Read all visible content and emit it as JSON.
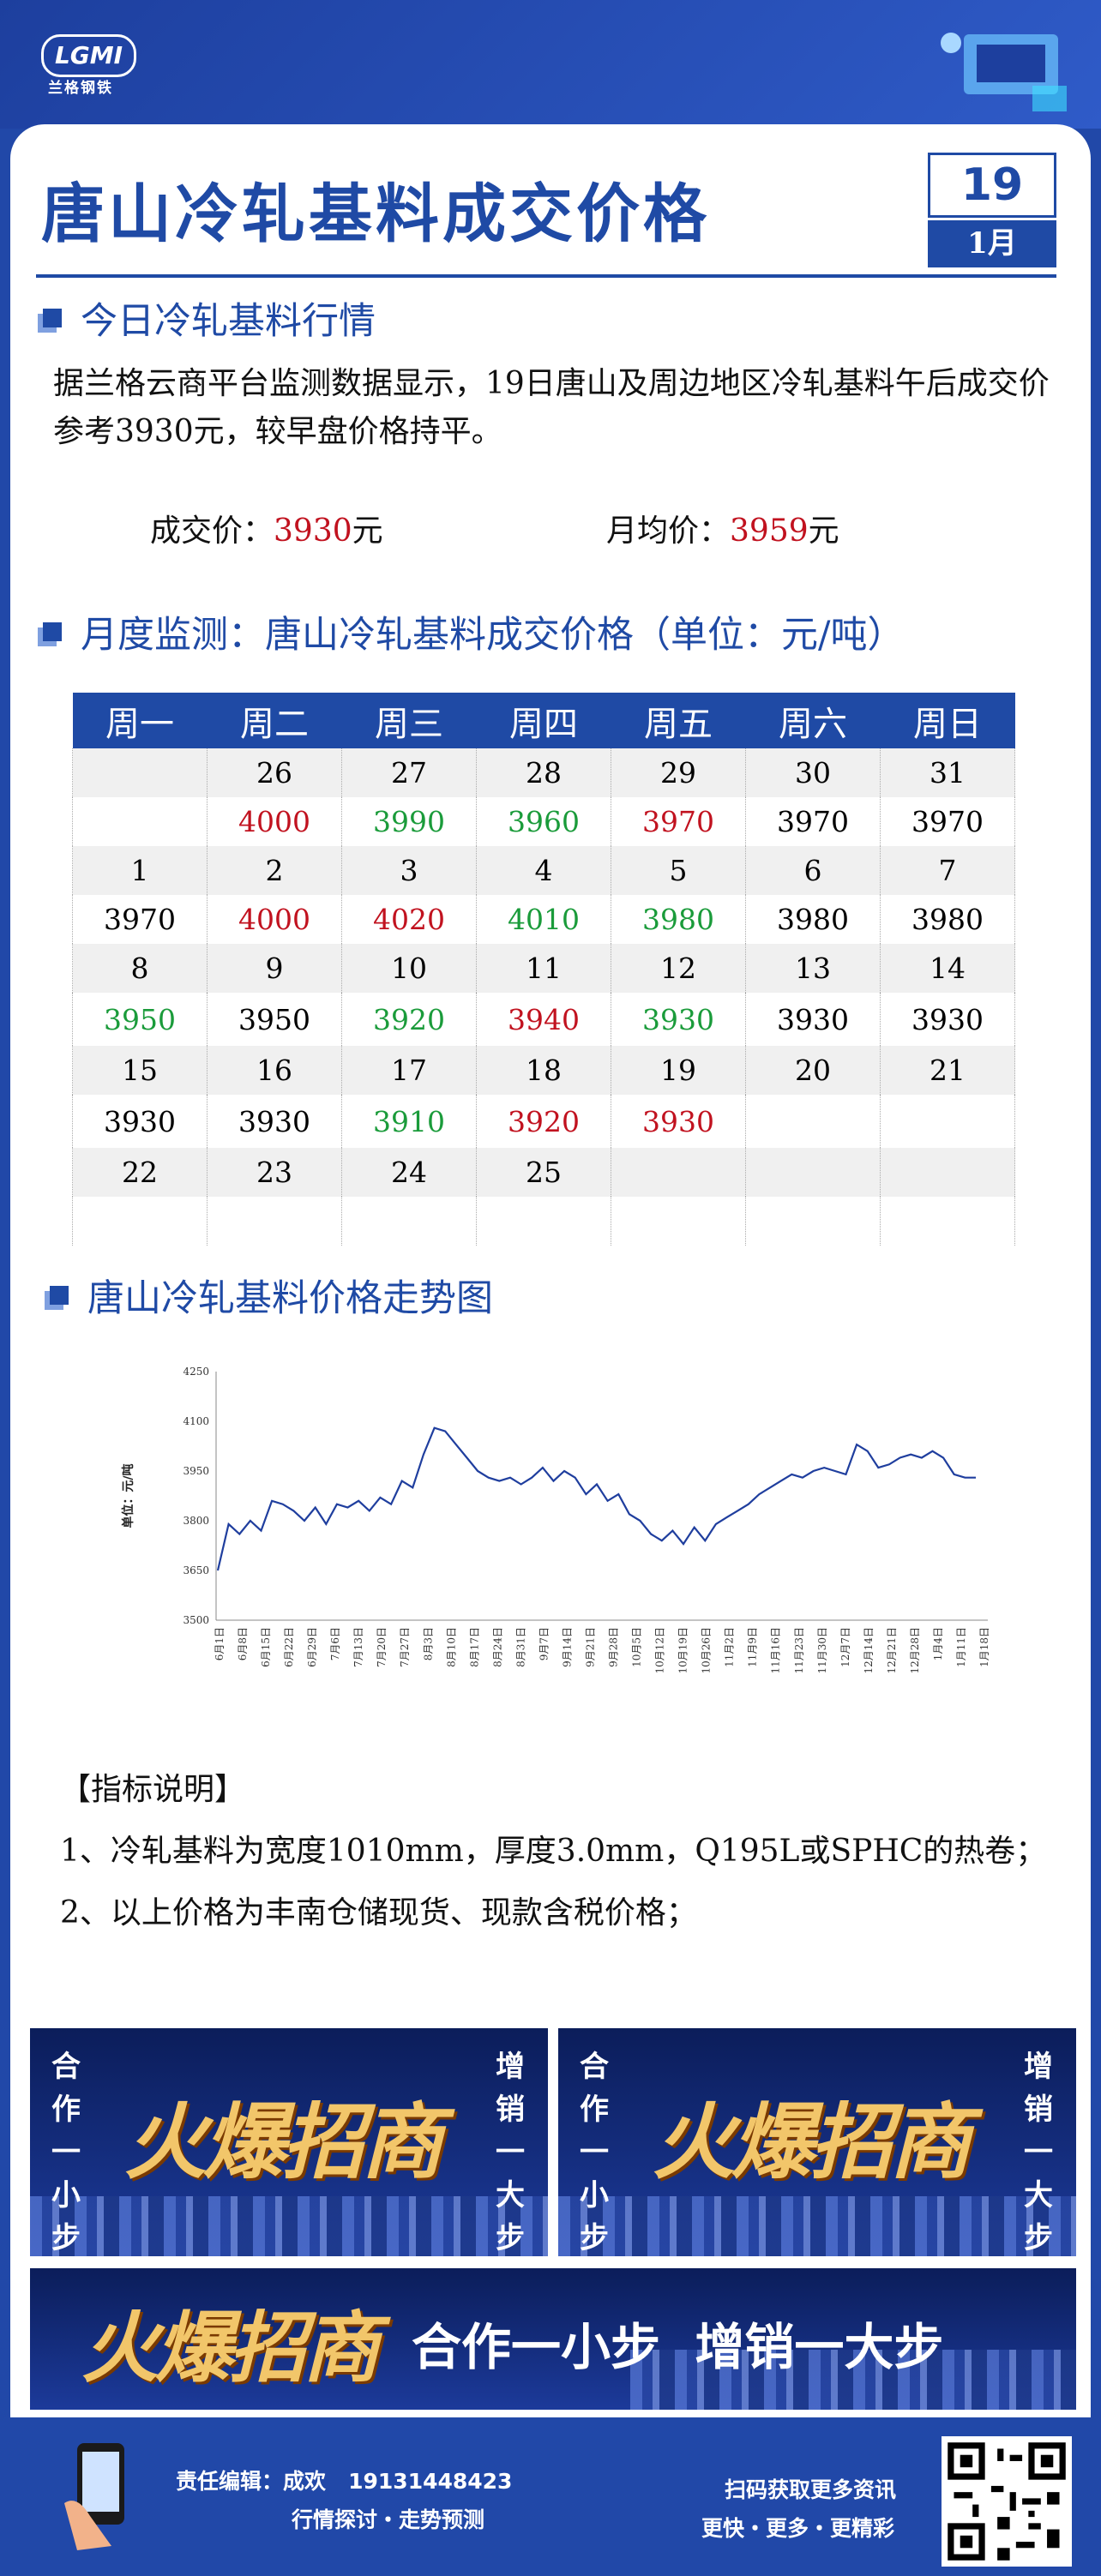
{
  "header": {
    "logo_badge": "LGMI",
    "logo_sub": "兰格钢铁",
    "title": "唐山冷轧基料成交价格",
    "date_day": "19",
    "date_month": "1月"
  },
  "section1": {
    "heading": "今日冷轧基料行情",
    "text": "据兰格云商平台监测数据显示，19日唐山及周边地区冷轧基料午后成交价参考3930元，较早盘价格持平。",
    "deal_label": "成交价：",
    "deal_value": "3930",
    "avg_label": "月均价：",
    "avg_value": "3959",
    "unit": "元"
  },
  "section2": {
    "heading": "月度监测：唐山冷轧基料成交价格（单位：元/吨）",
    "weekdays": [
      "周一",
      "周二",
      "周三",
      "周四",
      "周五",
      "周六",
      "周日"
    ],
    "rows": [
      [
        {
          "t": ""
        },
        {
          "t": "26"
        },
        {
          "t": "27"
        },
        {
          "t": "28"
        },
        {
          "t": "29"
        },
        {
          "t": "30"
        },
        {
          "t": "31"
        }
      ],
      [
        {
          "t": ""
        },
        {
          "t": "4000",
          "c": "red"
        },
        {
          "t": "3990",
          "c": "green"
        },
        {
          "t": "3960",
          "c": "green"
        },
        {
          "t": "3970",
          "c": "red"
        },
        {
          "t": "3970"
        },
        {
          "t": "3970"
        }
      ],
      [
        {
          "t": "1"
        },
        {
          "t": "2"
        },
        {
          "t": "3"
        },
        {
          "t": "4"
        },
        {
          "t": "5"
        },
        {
          "t": "6"
        },
        {
          "t": "7"
        }
      ],
      [
        {
          "t": "3970"
        },
        {
          "t": "4000",
          "c": "red"
        },
        {
          "t": "4020",
          "c": "red"
        },
        {
          "t": "4010",
          "c": "green"
        },
        {
          "t": "3980",
          "c": "green"
        },
        {
          "t": "3980"
        },
        {
          "t": "3980"
        }
      ],
      [
        {
          "t": "8"
        },
        {
          "t": "9"
        },
        {
          "t": "10"
        },
        {
          "t": "11"
        },
        {
          "t": "12"
        },
        {
          "t": "13"
        },
        {
          "t": "14"
        }
      ],
      [
        {
          "t": "3950",
          "c": "green"
        },
        {
          "t": "3950"
        },
        {
          "t": "3920",
          "c": "green"
        },
        {
          "t": "3940",
          "c": "red"
        },
        {
          "t": "3930",
          "c": "green"
        },
        {
          "t": "3930"
        },
        {
          "t": "3930"
        }
      ],
      [
        {
          "t": "15"
        },
        {
          "t": "16"
        },
        {
          "t": "17"
        },
        {
          "t": "18"
        },
        {
          "t": "19"
        },
        {
          "t": "20"
        },
        {
          "t": "21"
        }
      ],
      [
        {
          "t": "3930"
        },
        {
          "t": "3930"
        },
        {
          "t": "3910",
          "c": "green"
        },
        {
          "t": "3920",
          "c": "red"
        },
        {
          "t": "3930",
          "c": "red"
        },
        {
          "t": ""
        },
        {
          "t": ""
        }
      ],
      [
        {
          "t": "22"
        },
        {
          "t": "23"
        },
        {
          "t": "24"
        },
        {
          "t": "25"
        },
        {
          "t": ""
        },
        {
          "t": ""
        },
        {
          "t": ""
        }
      ],
      [
        {
          "t": ""
        },
        {
          "t": ""
        },
        {
          "t": ""
        },
        {
          "t": ""
        },
        {
          "t": ""
        },
        {
          "t": ""
        },
        {
          "t": ""
        }
      ]
    ]
  },
  "section3": {
    "heading": "唐山冷轧基料价格走势图"
  },
  "chart_data": {
    "type": "line",
    "ylabel": "单位：元/吨",
    "ylim": [
      3500,
      4250
    ],
    "yticks": [
      3500,
      3650,
      3800,
      3950,
      4100,
      4250
    ],
    "xticks": [
      "6月1日",
      "6月8日",
      "6月15日",
      "6月22日",
      "6月29日",
      "7月6日",
      "7月13日",
      "7月20日",
      "7月27日",
      "8月3日",
      "8月10日",
      "8月17日",
      "8月24日",
      "8月31日",
      "9月7日",
      "9月14日",
      "9月21日",
      "9月28日",
      "10月5日",
      "10月12日",
      "10月19日",
      "10月26日",
      "11月2日",
      "11月9日",
      "11月16日",
      "11月23日",
      "11月30日",
      "12月7日",
      "12月14日",
      "12月21日",
      "12月28日",
      "1月4日",
      "1月11日",
      "1月18日"
    ],
    "values": [
      3650,
      3790,
      3760,
      3800,
      3770,
      3860,
      3850,
      3830,
      3800,
      3840,
      3790,
      3850,
      3840,
      3860,
      3830,
      3870,
      3850,
      3920,
      3900,
      4000,
      4080,
      4070,
      4030,
      3990,
      3950,
      3930,
      3920,
      3930,
      3910,
      3930,
      3960,
      3920,
      3950,
      3930,
      3880,
      3910,
      3860,
      3880,
      3820,
      3800,
      3760,
      3740,
      3770,
      3730,
      3780,
      3740,
      3790,
      3810,
      3830,
      3850,
      3880,
      3900,
      3920,
      3940,
      3930,
      3950,
      3960,
      3950,
      3940,
      4030,
      4010,
      3960,
      3970,
      3990,
      4000,
      3990,
      4010,
      3990,
      3940,
      3930,
      3930
    ]
  },
  "notes": {
    "heading": "【指标说明】",
    "items": [
      "1、冷轧基料为宽度1010mm，厚度3.0mm，Q195L或SPHC的热卷；",
      "2、以上价格为丰南仓储现货、现款含税价格；"
    ]
  },
  "banners": {
    "main": "火爆招商",
    "left": "合作一小步",
    "right": "增销一大步",
    "wide_slogan": "合作一小步  增销一大步"
  },
  "footer": {
    "editor": "责任编辑：成欢   19131448423",
    "tagline": "行情探讨・走势预测",
    "scan": "扫码获取更多资讯",
    "more": "更快・更多・更精彩"
  }
}
